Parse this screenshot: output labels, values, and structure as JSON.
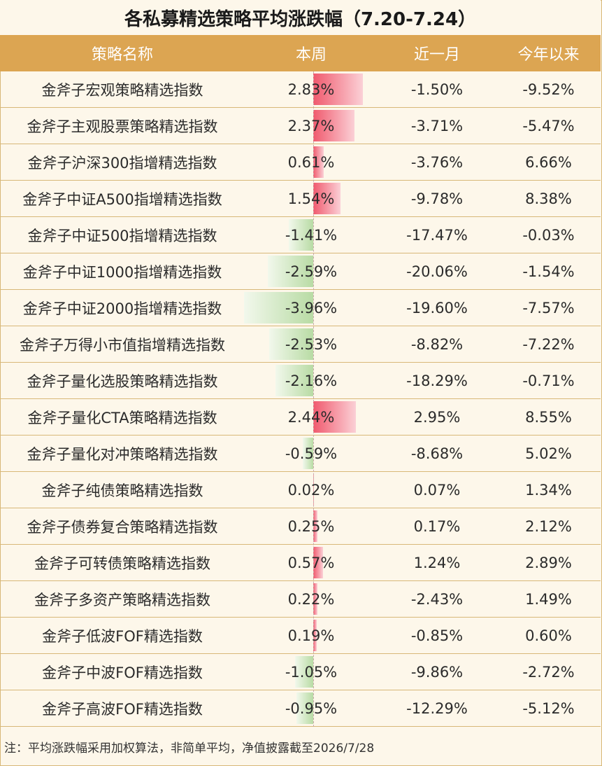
{
  "title": "各私募精选策略平均涨跌幅（7.20-7.24）",
  "headers": [
    "策略名称",
    "本周",
    "近一月",
    "今年以来"
  ],
  "chart_data": {
    "type": "table",
    "columns": [
      "策略名称",
      "本周",
      "近一月",
      "今年以来"
    ],
    "rows": [
      {
        "name": "金斧子宏观策略精选指数",
        "week": 2.83,
        "month": -1.5,
        "ytd": -9.52
      },
      {
        "name": "金斧子主观股票策略精选指数",
        "week": 2.37,
        "month": -3.71,
        "ytd": -5.47
      },
      {
        "name": "金斧子沪深300指增精选指数",
        "week": 0.61,
        "month": -3.76,
        "ytd": 6.66
      },
      {
        "name": "金斧子中证A500指增精选指数",
        "week": 1.54,
        "month": -9.78,
        "ytd": 8.38
      },
      {
        "name": "金斧子中证500指增精选指数",
        "week": -1.41,
        "month": -17.47,
        "ytd": -0.03
      },
      {
        "name": "金斧子中证1000指增精选指数",
        "week": -2.59,
        "month": -20.06,
        "ytd": -1.54
      },
      {
        "name": "金斧子中证2000指增精选指数",
        "week": -3.96,
        "month": -19.6,
        "ytd": -7.57
      },
      {
        "name": "金斧子万得小市值指增精选指数",
        "week": -2.53,
        "month": -8.82,
        "ytd": -7.22
      },
      {
        "name": "金斧子量化选股策略精选指数",
        "week": -2.16,
        "month": -18.29,
        "ytd": -0.71
      },
      {
        "name": "金斧子量化CTA策略精选指数",
        "week": 2.44,
        "month": 2.95,
        "ytd": 8.55
      },
      {
        "name": "金斧子量化对冲策略精选指数",
        "week": -0.59,
        "month": -8.68,
        "ytd": 5.02
      },
      {
        "name": "金斧子纯债策略精选指数",
        "week": 0.02,
        "month": 0.07,
        "ytd": 1.34
      },
      {
        "name": "金斧子债券复合策略精选指数",
        "week": 0.25,
        "month": 0.17,
        "ytd": 2.12
      },
      {
        "name": "金斧子可转债策略精选指数",
        "week": 0.57,
        "month": 1.24,
        "ytd": 2.89
      },
      {
        "name": "金斧子多资产策略精选指数",
        "week": 0.22,
        "month": -2.43,
        "ytd": 1.49
      },
      {
        "name": "金斧子低波FOF精选指数",
        "week": 0.19,
        "month": -0.85,
        "ytd": 0.6
      },
      {
        "name": "金斧子中波FOF精选指数",
        "week": -1.05,
        "month": -9.86,
        "ytd": -2.72
      },
      {
        "name": "金斧子高波FOF精选指数",
        "week": -0.95,
        "month": -12.29,
        "ytd": -5.12
      }
    ],
    "bar_colors": {
      "positive": "#f05a6e",
      "negative": "#b8dba4"
    }
  },
  "note": "注：平均涨跌幅采用加权算法，非简单平均，净值披露截至2026/7/28"
}
